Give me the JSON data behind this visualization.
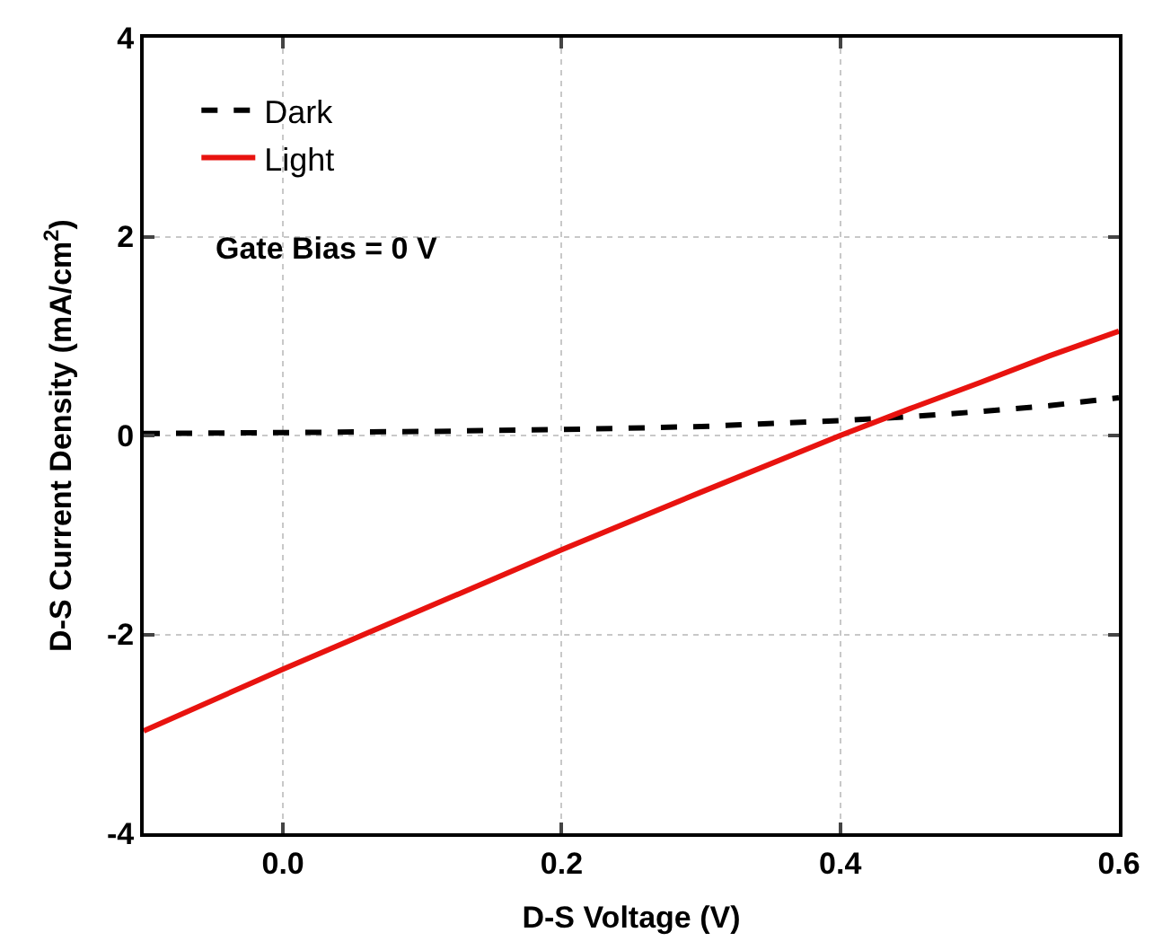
{
  "chart_data": {
    "type": "line",
    "xlabel": "D-S Voltage (V)",
    "ylabel": "D-S Current Density (mA/cm$^{2}$)",
    "x": [
      -0.1,
      0.0,
      0.1,
      0.2,
      0.3,
      0.4,
      0.45,
      0.5,
      0.55,
      0.6
    ],
    "series": [
      {
        "name": "Dark",
        "color": "#000000",
        "line_style": "dashed",
        "values": [
          0.02,
          0.03,
          0.04,
          0.06,
          0.09,
          0.15,
          0.19,
          0.24,
          0.3,
          0.38
        ]
      },
      {
        "name": "Light",
        "color": "#e8130f",
        "line_style": "solid",
        "values": [
          -2.97,
          -2.35,
          -1.75,
          -1.15,
          -0.57,
          0.0,
          0.27,
          0.53,
          0.8,
          1.05
        ]
      }
    ],
    "xlim": [
      -0.1,
      0.6
    ],
    "xticks": [
      {
        "value": 0,
        "label": "0.0"
      },
      0.2,
      0.4,
      0.6
    ],
    "ylim": [
      -4,
      4
    ],
    "yticks": [
      -4,
      -2,
      0,
      2,
      4
    ],
    "grid": true,
    "legend": "top left",
    "marker": "none",
    "annotations": [
      "Gate Bias = 0 V"
    ]
  }
}
